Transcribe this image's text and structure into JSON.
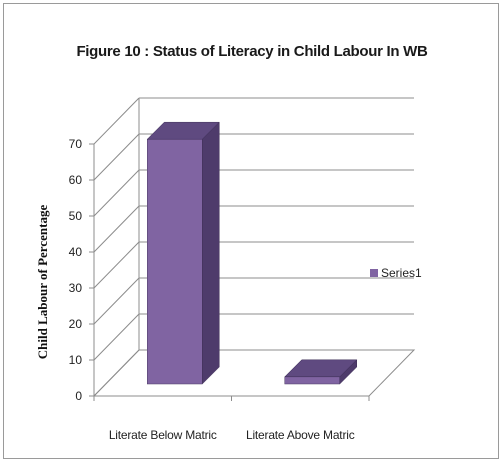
{
  "chart_data": {
    "type": "bar",
    "title": "Figure 10 : Status of Literacy in Child Labour In WB",
    "xlabel": "",
    "ylabel": "Child Labour of Percentage",
    "categories": [
      "Literate Below Matric",
      "Literate Above Matric"
    ],
    "series": [
      {
        "name": "Series1",
        "values": [
          68,
          2
        ]
      }
    ],
    "ylim": [
      0,
      70
    ],
    "yticks": [
      0,
      10,
      20,
      30,
      40,
      50,
      60,
      70
    ],
    "grid": true,
    "three_d": true,
    "legend_position": "right",
    "colors": {
      "bar_front": "#8064A2",
      "bar_top": "#5F4A80",
      "bar_side": "#4E3B6B",
      "grid": "#8c8c8c"
    }
  }
}
